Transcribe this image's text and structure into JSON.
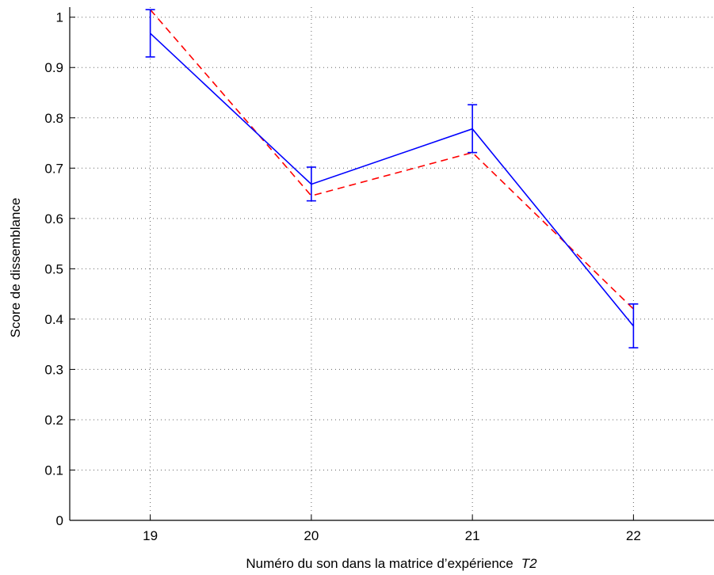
{
  "chart_data": {
    "type": "line",
    "title": "",
    "xlabel": "Numéro du son dans la matrice d’expérience",
    "xlabel_symbol": "T2",
    "ylabel": "Score de dissemblance",
    "x": [
      19,
      20,
      21,
      22
    ],
    "xlim": [
      18.5,
      22.5
    ],
    "ylim": [
      0,
      1.02
    ],
    "xticks": [
      19,
      20,
      21,
      22
    ],
    "yticks": [
      0,
      0.1,
      0.2,
      0.3,
      0.4,
      0.5,
      0.6,
      0.7,
      0.8,
      0.9,
      1
    ],
    "ytick_labels": [
      "0",
      "0.1",
      "0.2",
      "0.3",
      "0.4",
      "0.5",
      "0.6",
      "0.7",
      "0.8",
      "0.9",
      "1"
    ],
    "grid": true,
    "series": [
      {
        "style": "solid",
        "color": "#0000ff",
        "values": [
          0.968,
          0.668,
          0.778,
          0.386
        ],
        "error_low": [
          0.921,
          0.635,
          0.731,
          0.343
        ],
        "error_high": [
          1.015,
          0.702,
          0.826,
          0.43
        ]
      },
      {
        "style": "dashed",
        "color": "#ff0000",
        "values": [
          1.015,
          0.645,
          0.731,
          0.42
        ]
      }
    ]
  }
}
